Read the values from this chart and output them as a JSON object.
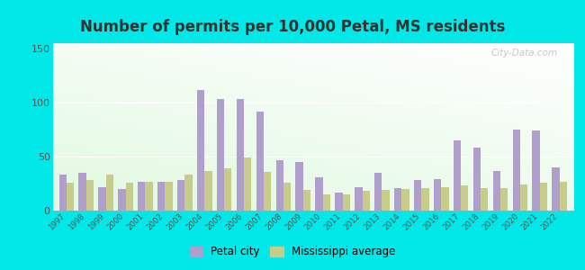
{
  "title": "Number of permits per 10,000 Petal, MS residents",
  "years": [
    1997,
    1998,
    1999,
    2000,
    2001,
    2002,
    2003,
    2004,
    2005,
    2006,
    2007,
    2008,
    2009,
    2010,
    2011,
    2012,
    2013,
    2014,
    2015,
    2016,
    2017,
    2018,
    2019,
    2020,
    2021,
    2022
  ],
  "petal_values": [
    33,
    35,
    22,
    20,
    27,
    27,
    28,
    112,
    103,
    103,
    92,
    47,
    45,
    31,
    17,
    22,
    35,
    21,
    28,
    29,
    65,
    58,
    37,
    75,
    74,
    40
  ],
  "ms_values": [
    26,
    28,
    33,
    26,
    27,
    27,
    33,
    37,
    39,
    49,
    36,
    26,
    19,
    15,
    15,
    18,
    19,
    20,
    21,
    22,
    23,
    21,
    21,
    24,
    26,
    27
  ],
  "petal_color": "#b09fcc",
  "ms_color": "#c8cc8a",
  "background_outer": "#00e8e8",
  "ylabel_ticks": [
    0,
    50,
    100,
    150
  ],
  "ylim": [
    0,
    155
  ],
  "bar_width": 0.38,
  "legend_petal": "Petal city",
  "legend_ms": "Mississippi average",
  "watermark": "City-Data.com",
  "title_color": "#333333",
  "title_fontsize": 12
}
